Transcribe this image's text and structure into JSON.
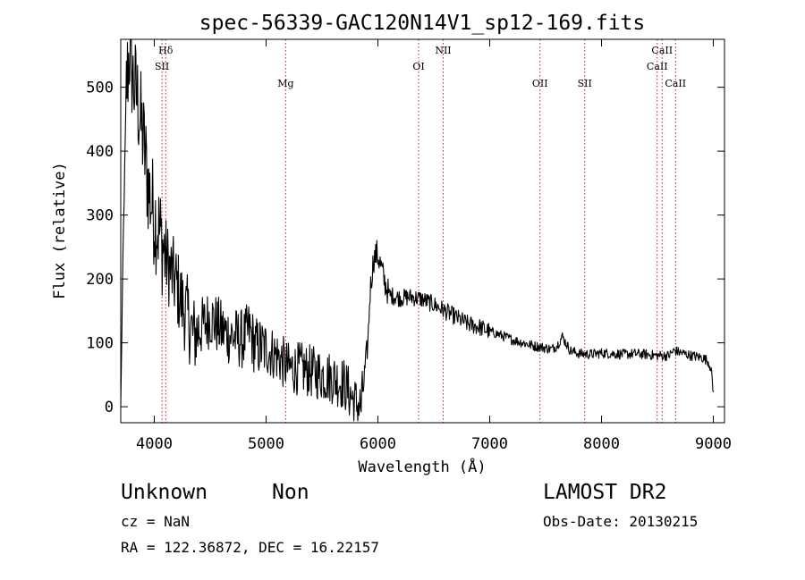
{
  "chart_data": {
    "type": "line",
    "title": "spec-56339-GAC120N14V1_sp12-169.fits",
    "xlabel": "Wavelength (Å)",
    "ylabel": "Flux (relative)",
    "xlim": [
      3700,
      9100
    ],
    "ylim": [
      -25,
      575
    ],
    "xticks": [
      4000,
      5000,
      6000,
      7000,
      8000,
      9000
    ],
    "yticks": [
      0,
      100,
      200,
      300,
      400,
      500
    ],
    "grid": false,
    "line_color": "#000000",
    "marker_color": "#b22222",
    "anchors": [
      [
        3700,
        0
      ],
      [
        3720,
        240
      ],
      [
        3750,
        500
      ],
      [
        3780,
        560
      ],
      [
        3810,
        510
      ],
      [
        3850,
        480
      ],
      [
        3900,
        420
      ],
      [
        3950,
        340
      ],
      [
        4000,
        300
      ],
      [
        4050,
        270
      ],
      [
        4100,
        235
      ],
      [
        4150,
        210
      ],
      [
        4200,
        190
      ],
      [
        4250,
        160
      ],
      [
        4300,
        140
      ],
      [
        4350,
        110
      ],
      [
        4400,
        120
      ],
      [
        4500,
        140
      ],
      [
        4600,
        120
      ],
      [
        4700,
        110
      ],
      [
        4800,
        105
      ],
      [
        4850,
        120
      ],
      [
        4900,
        95
      ],
      [
        5000,
        90
      ],
      [
        5100,
        80
      ],
      [
        5200,
        60
      ],
      [
        5300,
        60
      ],
      [
        5400,
        55
      ],
      [
        5500,
        50
      ],
      [
        5600,
        45
      ],
      [
        5700,
        35
      ],
      [
        5750,
        20
      ],
      [
        5800,
        5
      ],
      [
        5850,
        0
      ],
      [
        5880,
        50
      ],
      [
        5910,
        100
      ],
      [
        5930,
        180
      ],
      [
        5960,
        230
      ],
      [
        5990,
        240
      ],
      [
        6020,
        225
      ],
      [
        6060,
        195
      ],
      [
        6100,
        175
      ],
      [
        6200,
        170
      ],
      [
        6300,
        172
      ],
      [
        6400,
        168
      ],
      [
        6500,
        160
      ],
      [
        6600,
        150
      ],
      [
        6700,
        140
      ],
      [
        6800,
        130
      ],
      [
        6900,
        125
      ],
      [
        7000,
        118
      ],
      [
        7100,
        112
      ],
      [
        7200,
        105
      ],
      [
        7300,
        100
      ],
      [
        7400,
        95
      ],
      [
        7500,
        92
      ],
      [
        7550,
        90
      ],
      [
        7600,
        95
      ],
      [
        7650,
        110
      ],
      [
        7680,
        100
      ],
      [
        7720,
        88
      ],
      [
        7800,
        83
      ],
      [
        7900,
        82
      ],
      [
        8000,
        84
      ],
      [
        8100,
        83
      ],
      [
        8200,
        82
      ],
      [
        8300,
        83
      ],
      [
        8400,
        82
      ],
      [
        8500,
        80
      ],
      [
        8600,
        80
      ],
      [
        8650,
        88
      ],
      [
        8700,
        85
      ],
      [
        8800,
        80
      ],
      [
        8900,
        77
      ],
      [
        8950,
        72
      ],
      [
        8980,
        60
      ],
      [
        9000,
        20
      ]
    ],
    "line_markers": [
      {
        "label": "Hδ",
        "x": 4102,
        "row": 0
      },
      {
        "label": "SII",
        "x": 4069,
        "row": 1
      },
      {
        "label": "Mg",
        "x": 5175,
        "row": 2
      },
      {
        "label": "OI",
        "x": 6364,
        "row": 1
      },
      {
        "label": "NII",
        "x": 6584,
        "row": 0
      },
      {
        "label": "OII",
        "x": 7450,
        "row": 2
      },
      {
        "label": "SII",
        "x": 7850,
        "row": 2
      },
      {
        "label": "CaII",
        "x": 8542,
        "row": 0
      },
      {
        "label": "CaII",
        "x": 8498,
        "row": 1
      },
      {
        "label": "CaII",
        "x": 8662,
        "row": 2
      }
    ]
  },
  "info": {
    "object_class": "Unknown",
    "subclass": "Non",
    "survey": "LAMOST DR2",
    "cz": "cz = NaN",
    "obs_date": "Obs-Date: 20130215",
    "coords": "RA = 122.36872, DEC =  16.22157"
  }
}
